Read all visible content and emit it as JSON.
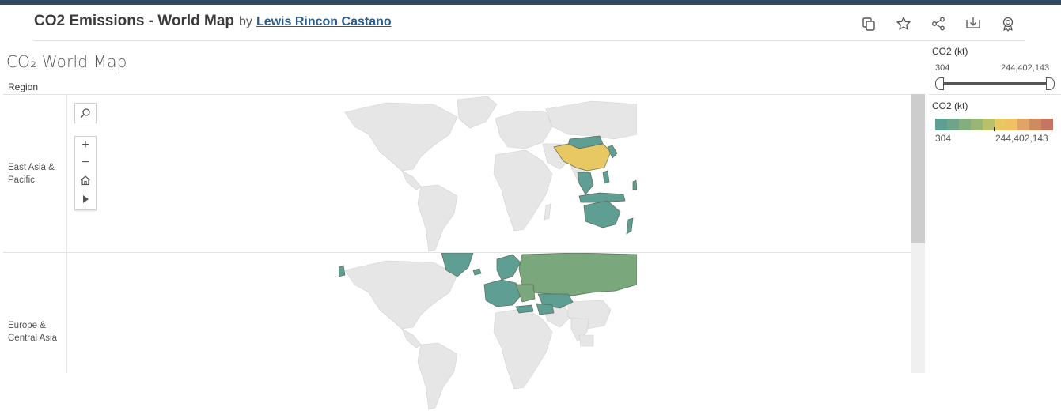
{
  "header": {
    "title": "CO2 Emissions - World Map",
    "by": "by",
    "author": "Lewis Rincon Castano"
  },
  "toolbar": {
    "icons": [
      "duplicate-icon",
      "star-icon",
      "share-icon",
      "download-icon",
      "badge-icon"
    ]
  },
  "dashboard": {
    "title": "CO₂ World Map",
    "region_header": "Region"
  },
  "rows": [
    {
      "label": "East Asia & Pacific"
    },
    {
      "label": "Europe & Central Asia"
    }
  ],
  "map_tools": {
    "search": "search-icon",
    "zoom_in": "+",
    "zoom_out": "−",
    "home": "home-icon",
    "pan": "pan-arrow-icon"
  },
  "filter_legend": {
    "title": "CO2 (kt)",
    "min": "304",
    "max": "244,402,143"
  },
  "color_legend": {
    "title": "CO2 (kt)",
    "min": "304",
    "max": "244,402,143",
    "colors": [
      "#5f9e93",
      "#6fa38a",
      "#84ad80",
      "#9ab676",
      "#b9c06b",
      "#e8c862",
      "#f0c065",
      "#e0a464",
      "#cf8a60",
      "#c57562"
    ]
  },
  "colors": {
    "top_bar": "#2f4a62",
    "link": "#2a5d8c",
    "land_default": "#e6e6e6",
    "region_green": "#7aa87c",
    "region_teal": "#5f9e93",
    "china_yellow": "#e8c862"
  }
}
